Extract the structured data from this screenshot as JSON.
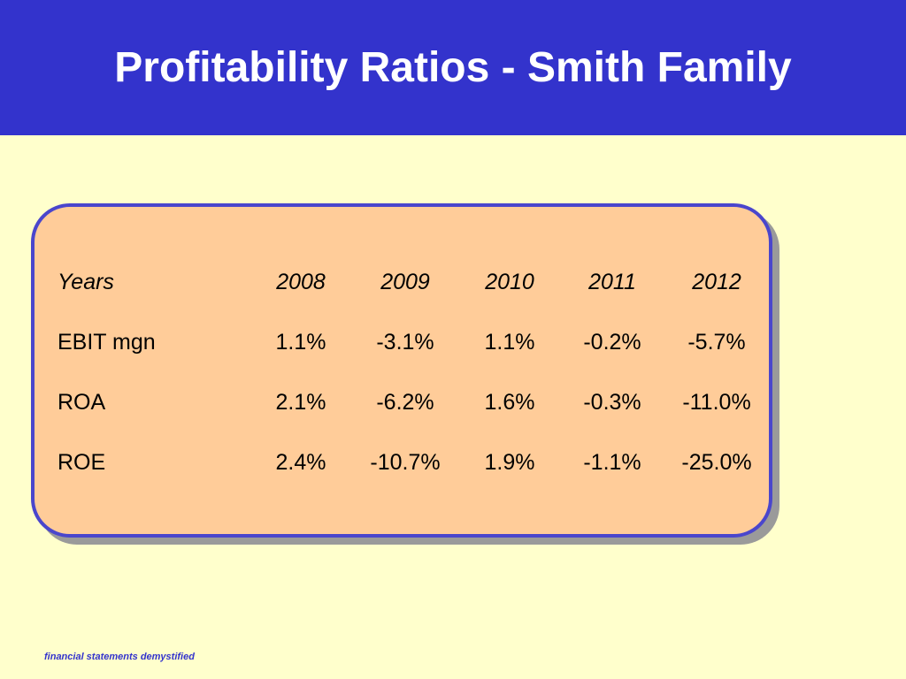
{
  "slide": {
    "title": "Profitability Ratios - Smith Family",
    "footer": "financial statements demystified"
  },
  "table": {
    "header": {
      "label": "Years",
      "years": [
        "2008",
        "2009",
        "2010",
        "2011",
        "2012"
      ]
    },
    "rows": [
      {
        "label": "EBIT mgn",
        "values": [
          "1.1%",
          "-3.1%",
          "1.1%",
          "-0.2%",
          "-5.7%"
        ]
      },
      {
        "label": "ROA",
        "values": [
          "2.1%",
          "-6.2%",
          "1.6%",
          "-0.3%",
          "-11.0%"
        ]
      },
      {
        "label": "ROE",
        "values": [
          "2.4%",
          "-10.7%",
          "1.9%",
          "-1.1%",
          "-25.0%"
        ]
      }
    ]
  },
  "colors": {
    "title_bar": "#3333cc",
    "background": "#ffffcc",
    "card_fill": "#ffcc99",
    "card_border": "#4a46cc"
  }
}
